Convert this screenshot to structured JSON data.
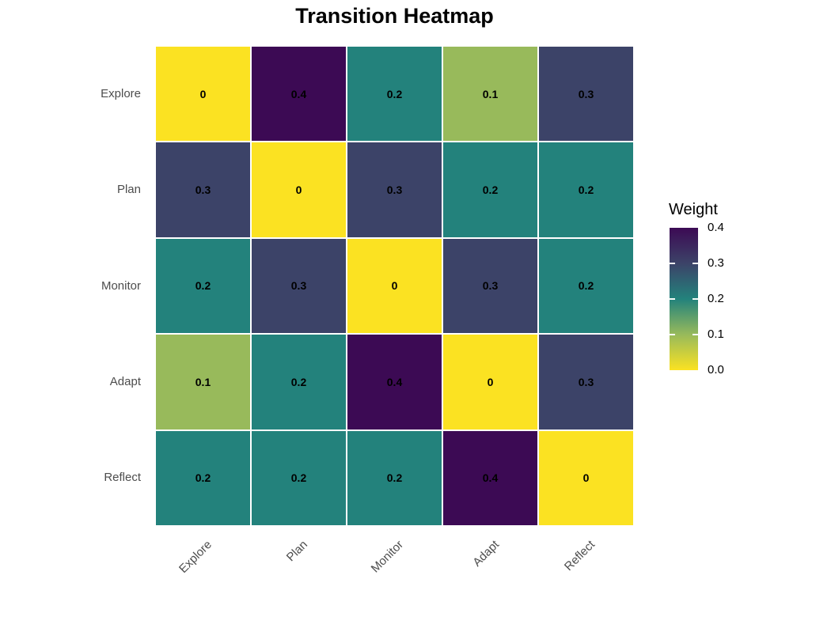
{
  "title": "Transition Heatmap",
  "legend": {
    "title": "Weight",
    "tick_labels": [
      "0.4",
      "0.3",
      "0.2",
      "0.1",
      "0.0"
    ],
    "tick_values": [
      0.4,
      0.3,
      0.2,
      0.1,
      0.0
    ]
  },
  "colors": {
    "background": "#ffffff",
    "axis_text": "#4d4d4d",
    "cell_text": "#000000",
    "tile_border": "#ffffff"
  },
  "chart_data": {
    "type": "heatmap",
    "title": "Transition Heatmap",
    "rows": [
      "Explore",
      "Plan",
      "Monitor",
      "Adapt",
      "Reflect"
    ],
    "columns": [
      "Explore",
      "Plan",
      "Monitor",
      "Adapt",
      "Reflect"
    ],
    "values": [
      [
        0,
        0.4,
        0.2,
        0.1,
        0.3
      ],
      [
        0.3,
        0,
        0.3,
        0.2,
        0.2
      ],
      [
        0.2,
        0.3,
        0,
        0.3,
        0.2
      ],
      [
        0.1,
        0.2,
        0.4,
        0,
        0.3
      ],
      [
        0.2,
        0.2,
        0.2,
        0.4,
        0
      ]
    ],
    "cell_labels": [
      [
        "0",
        "0.4",
        "0.2",
        "0.1",
        "0.3"
      ],
      [
        "0.3",
        "0",
        "0.3",
        "0.2",
        "0.2"
      ],
      [
        "0.2",
        "0.3",
        "0",
        "0.3",
        "0.2"
      ],
      [
        "0.1",
        "0.2",
        "0.4",
        "0",
        "0.3"
      ],
      [
        "0.2",
        "0.2",
        "0.2",
        "0.4",
        "0"
      ]
    ],
    "legend_title": "Weight",
    "value_range": [
      0.0,
      0.4
    ],
    "color_scale": {
      "0": "#FBE222",
      "0.1": "#98BA5B",
      "0.2": "#23827C",
      "0.3": "#3C4368",
      "0.4": "#3C0A54"
    },
    "legend_position": "right",
    "x_label_angle": 45,
    "grid": false
  }
}
